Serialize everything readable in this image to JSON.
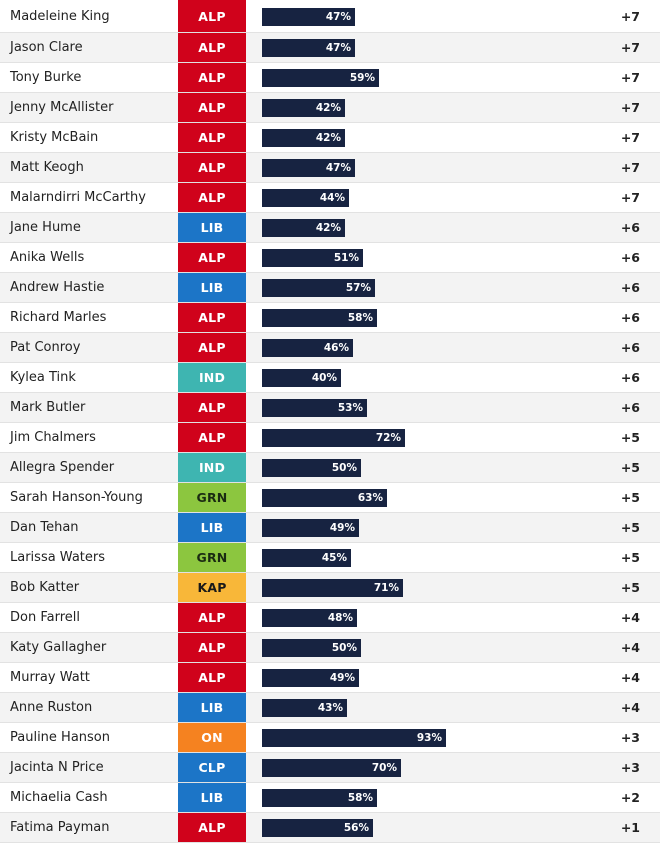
{
  "chart_data": {
    "type": "table",
    "xlim": [
      0,
      100
    ],
    "rows": [
      {
        "name": "Madeleine King",
        "party": "ALP",
        "value": 47,
        "label": "47%",
        "change": "+7"
      },
      {
        "name": "Jason Clare",
        "party": "ALP",
        "value": 47,
        "label": "47%",
        "change": "+7"
      },
      {
        "name": "Tony Burke",
        "party": "ALP",
        "value": 59,
        "label": "59%",
        "change": "+7"
      },
      {
        "name": "Jenny McAllister",
        "party": "ALP",
        "value": 42,
        "label": "42%",
        "change": "+7"
      },
      {
        "name": "Kristy McBain",
        "party": "ALP",
        "value": 42,
        "label": "42%",
        "change": "+7"
      },
      {
        "name": "Matt Keogh",
        "party": "ALP",
        "value": 47,
        "label": "47%",
        "change": "+7"
      },
      {
        "name": "Malarndirri McCarthy",
        "party": "ALP",
        "value": 44,
        "label": "44%",
        "change": "+7"
      },
      {
        "name": "Jane Hume",
        "party": "LIB",
        "value": 42,
        "label": "42%",
        "change": "+6"
      },
      {
        "name": "Anika Wells",
        "party": "ALP",
        "value": 51,
        "label": "51%",
        "change": "+6"
      },
      {
        "name": "Andrew Hastie",
        "party": "LIB",
        "value": 57,
        "label": "57%",
        "change": "+6"
      },
      {
        "name": "Richard Marles",
        "party": "ALP",
        "value": 58,
        "label": "58%",
        "change": "+6"
      },
      {
        "name": "Pat Conroy",
        "party": "ALP",
        "value": 46,
        "label": "46%",
        "change": "+6"
      },
      {
        "name": "Kylea Tink",
        "party": "IND",
        "value": 40,
        "label": "40%",
        "change": "+6"
      },
      {
        "name": "Mark Butler",
        "party": "ALP",
        "value": 53,
        "label": "53%",
        "change": "+6"
      },
      {
        "name": "Jim Chalmers",
        "party": "ALP",
        "value": 72,
        "label": "72%",
        "change": "+5"
      },
      {
        "name": "Allegra Spender",
        "party": "IND",
        "value": 50,
        "label": "50%",
        "change": "+5"
      },
      {
        "name": "Sarah Hanson-Young",
        "party": "GRN",
        "value": 63,
        "label": "63%",
        "change": "+5"
      },
      {
        "name": "Dan Tehan",
        "party": "LIB",
        "value": 49,
        "label": "49%",
        "change": "+5"
      },
      {
        "name": "Larissa Waters",
        "party": "GRN",
        "value": 45,
        "label": "45%",
        "change": "+5"
      },
      {
        "name": "Bob Katter",
        "party": "KAP",
        "value": 71,
        "label": "71%",
        "change": "+5"
      },
      {
        "name": "Don Farrell",
        "party": "ALP",
        "value": 48,
        "label": "48%",
        "change": "+4"
      },
      {
        "name": "Katy Gallagher",
        "party": "ALP",
        "value": 50,
        "label": "50%",
        "change": "+4"
      },
      {
        "name": "Murray Watt",
        "party": "ALP",
        "value": 49,
        "label": "49%",
        "change": "+4"
      },
      {
        "name": "Anne Ruston",
        "party": "LIB",
        "value": 43,
        "label": "43%",
        "change": "+4"
      },
      {
        "name": "Pauline Hanson",
        "party": "ON",
        "value": 93,
        "label": "93%",
        "change": "+3"
      },
      {
        "name": "Jacinta N Price",
        "party": "CLP",
        "value": 70,
        "label": "70%",
        "change": "+3"
      },
      {
        "name": "Michaelia Cash",
        "party": "LIB",
        "value": 58,
        "label": "58%",
        "change": "+2"
      },
      {
        "name": "Fatima Payman",
        "party": "ALP",
        "value": 56,
        "label": "56%",
        "change": "+1"
      }
    ]
  },
  "colors": {
    "bar": "#172341",
    "party": {
      "ALP": {
        "bg": "#d0021b",
        "fg": "#ffffff"
      },
      "LIB": {
        "bg": "#1c75c7",
        "fg": "#ffffff"
      },
      "IND": {
        "bg": "#3eb5b1",
        "fg": "#ffffff"
      },
      "GRN": {
        "bg": "#8cc63f",
        "fg": "#1b2b12"
      },
      "KAP": {
        "bg": "#f8b739",
        "fg": "#1a1a1a"
      },
      "ON": {
        "bg": "#f58220",
        "fg": "#ffffff"
      },
      "CLP": {
        "bg": "#1c75c7",
        "fg": "#ffffff"
      }
    }
  }
}
